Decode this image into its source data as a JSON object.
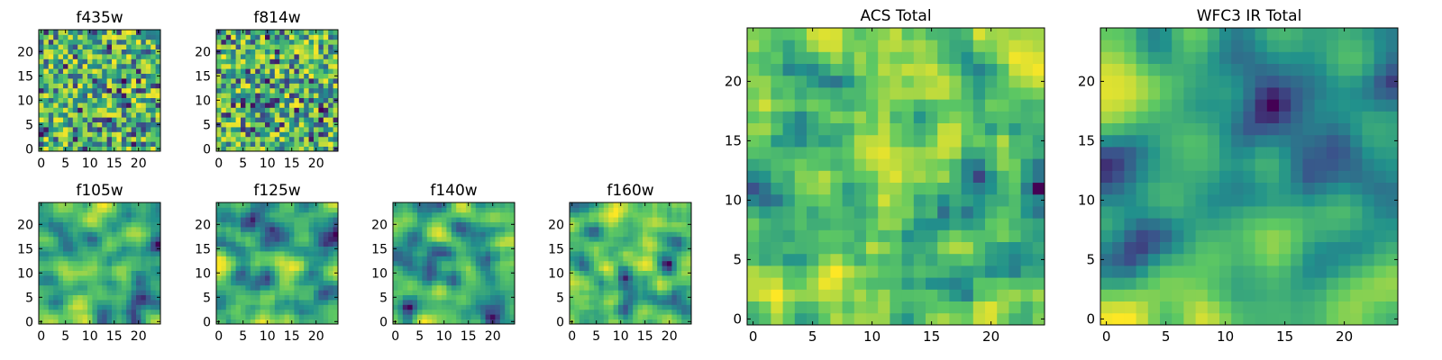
{
  "chart_data": [
    {
      "type": "heatmap",
      "title": "f435w",
      "grid_size": 25,
      "xlim": [
        -0.5,
        24.5
      ],
      "ylim": [
        -0.5,
        24.5
      ],
      "xticks": [
        0,
        5,
        10,
        15,
        20
      ],
      "yticks": [
        0,
        5,
        10,
        15,
        20
      ],
      "colormap": "viridis",
      "description_of_values": "high-frequency noise, mostly green/yellow, scattered dark pixels"
    },
    {
      "type": "heatmap",
      "title": "f814w",
      "grid_size": 25,
      "xlim": [
        -0.5,
        24.5
      ],
      "ylim": [
        -0.5,
        24.5
      ],
      "xticks": [
        0,
        5,
        10,
        15,
        20
      ],
      "yticks": [
        0,
        5,
        10,
        15,
        20
      ],
      "colormap": "viridis"
    },
    {
      "type": "heatmap",
      "title": "f105w",
      "grid_size": 25,
      "xlim": [
        -0.5,
        24.5
      ],
      "ylim": [
        -0.5,
        24.5
      ],
      "xticks": [
        0,
        5,
        10,
        15,
        20
      ],
      "yticks": [
        0,
        5,
        10,
        15,
        20
      ],
      "colormap": "viridis"
    },
    {
      "type": "heatmap",
      "title": "f125w",
      "grid_size": 25,
      "xlim": [
        -0.5,
        24.5
      ],
      "ylim": [
        -0.5,
        24.5
      ],
      "xticks": [
        0,
        5,
        10,
        15,
        20
      ],
      "yticks": [
        0,
        5,
        10,
        15,
        20
      ],
      "colormap": "viridis"
    },
    {
      "type": "heatmap",
      "title": "f140w",
      "grid_size": 25,
      "xlim": [
        -0.5,
        24.5
      ],
      "ylim": [
        -0.5,
        24.5
      ],
      "xticks": [
        0,
        5,
        10,
        15,
        20
      ],
      "yticks": [
        0,
        5,
        10,
        15,
        20
      ],
      "colormap": "viridis"
    },
    {
      "type": "heatmap",
      "title": "f160w",
      "grid_size": 25,
      "xlim": [
        -0.5,
        24.5
      ],
      "ylim": [
        -0.5,
        24.5
      ],
      "xticks": [
        0,
        5,
        10,
        15,
        20
      ],
      "yticks": [
        0,
        5,
        10,
        15,
        20
      ],
      "colormap": "viridis"
    },
    {
      "type": "heatmap",
      "title": "ACS Total",
      "grid_size": 25,
      "xlim": [
        -0.5,
        24.5
      ],
      "ylim": [
        -0.5,
        24.5
      ],
      "xticks": [
        0,
        5,
        10,
        15,
        20
      ],
      "yticks": [
        0,
        5,
        10,
        15,
        20
      ],
      "colormap": "viridis"
    },
    {
      "type": "heatmap",
      "title": "WFC3 IR Total",
      "grid_size": 25,
      "xlim": [
        -0.5,
        24.5
      ],
      "ylim": [
        -0.5,
        24.5
      ],
      "xticks": [
        0,
        5,
        10,
        15,
        20
      ],
      "yticks": [
        0,
        5,
        10,
        15,
        20
      ],
      "colormap": "viridis"
    }
  ],
  "colors": {
    "viridis_dark": "#440154",
    "viridis_blue": "#3b528b",
    "viridis_teal": "#21918c",
    "viridis_green": "#5ec962",
    "viridis_yellow": "#fde725"
  }
}
